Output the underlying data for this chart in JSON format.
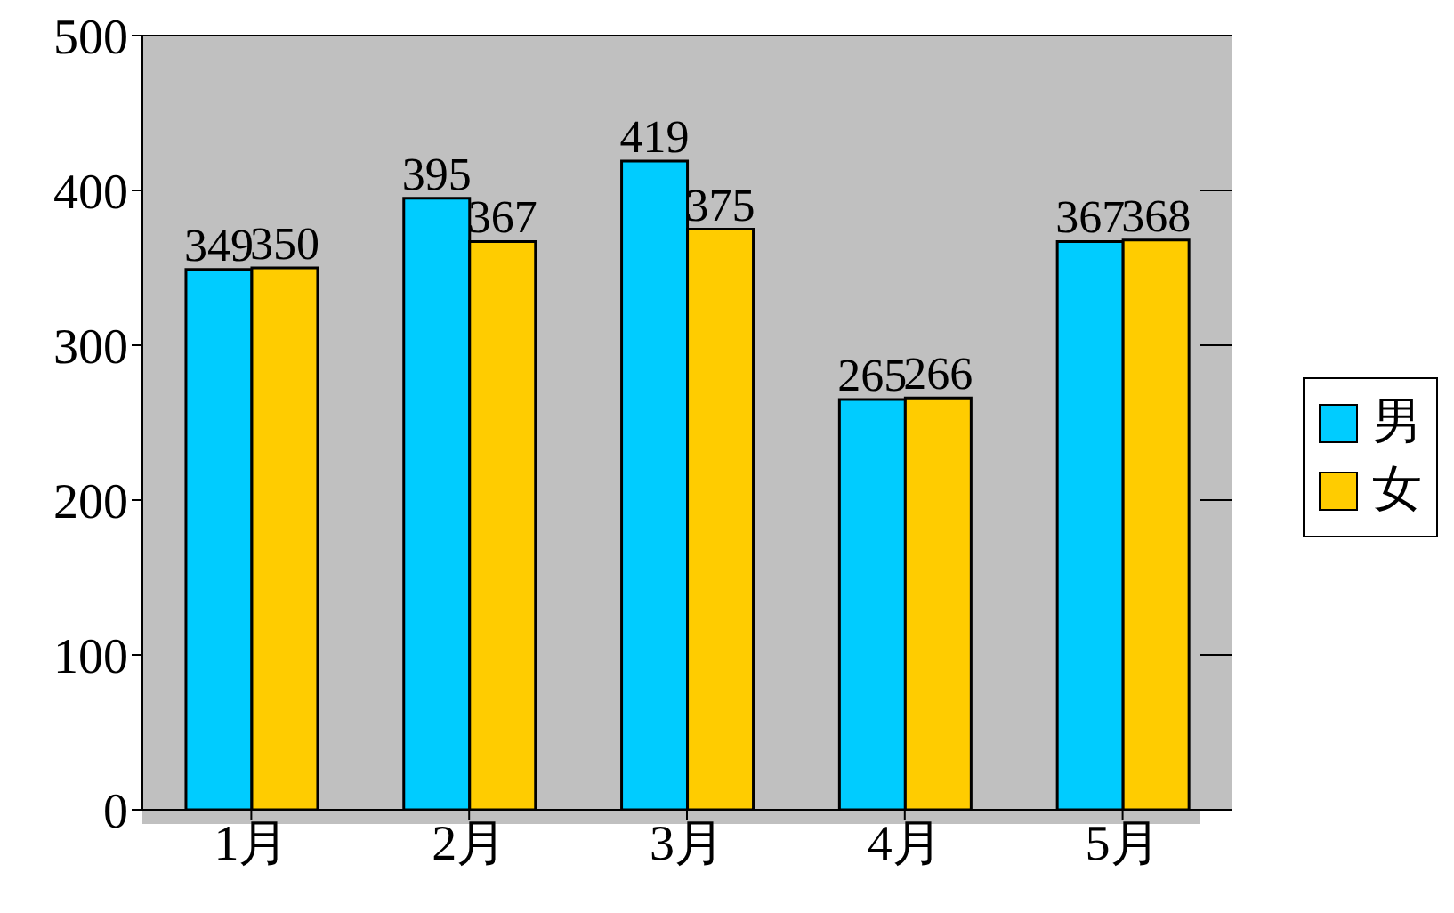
{
  "chart_data": {
    "type": "bar",
    "categories": [
      "1月",
      "2月",
      "3月",
      "4月",
      "5月"
    ],
    "series": [
      {
        "name": "男",
        "color": "#00ccff",
        "values": [
          349,
          395,
          419,
          265,
          367
        ]
      },
      {
        "name": "女",
        "color": "#ffcc00",
        "values": [
          350,
          367,
          375,
          266,
          368
        ]
      }
    ],
    "ylim": [
      0,
      500
    ],
    "yticks": [
      0,
      100,
      200,
      300,
      400,
      500
    ],
    "grid": "y",
    "legend": "right",
    "data_labels": true
  }
}
